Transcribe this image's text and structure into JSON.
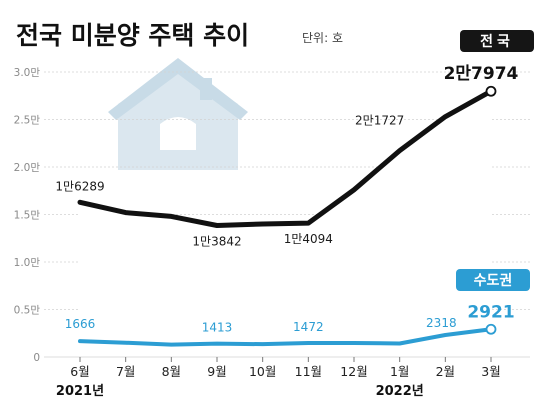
{
  "header": {
    "title": "전국 미분양 주택 추이",
    "unit": "단위: 호"
  },
  "colors": {
    "national": "#111111",
    "capital": "#2c9dd3",
    "grid": "#d2d2d2",
    "badge_dark": "#151515",
    "badge_blue": "#2c9dd3",
    "house_watermark": "#dbe7ef"
  },
  "chart_data": {
    "type": "line",
    "categories": [
      "6월",
      "7월",
      "8월",
      "9월",
      "10월",
      "11월",
      "12월",
      "1월",
      "2월",
      "3월"
    ],
    "year_labels": [
      {
        "index": 0,
        "label": "2021년"
      },
      {
        "index": 7,
        "label": "2022년"
      }
    ],
    "yticks": [
      {
        "value": 0,
        "label": "0"
      },
      {
        "value": 5000,
        "label": "0.5만"
      },
      {
        "value": 10000,
        "label": "1.0만"
      },
      {
        "value": 15000,
        "label": "1.5만"
      },
      {
        "value": 20000,
        "label": "2.0만"
      },
      {
        "value": 25000,
        "label": "2.5만"
      },
      {
        "value": 30000,
        "label": "3.0만"
      }
    ],
    "ylim": [
      0,
      30000
    ],
    "grid": true,
    "series": [
      {
        "name": "전국",
        "values": [
          16289,
          15200,
          14800,
          13842,
          14000,
          14094,
          17600,
          21727,
          25300,
          27974
        ],
        "labels": [
          {
            "index": 0,
            "text": "1만6289"
          },
          {
            "index": 3,
            "text": "1만3842"
          },
          {
            "index": 5,
            "text": "1만4094"
          },
          {
            "index": 7,
            "text": "2만1727"
          },
          {
            "index": 9,
            "text": "2만7974"
          }
        ]
      },
      {
        "name": "수도권",
        "values": [
          1666,
          1500,
          1300,
          1413,
          1350,
          1472,
          1480,
          1420,
          2318,
          2921
        ],
        "labels": [
          {
            "index": 0,
            "text": "1666"
          },
          {
            "index": 3,
            "text": "1413"
          },
          {
            "index": 5,
            "text": "1472"
          },
          {
            "index": 8,
            "text": "2318"
          },
          {
            "index": 9,
            "text": "2921"
          }
        ]
      }
    ]
  }
}
